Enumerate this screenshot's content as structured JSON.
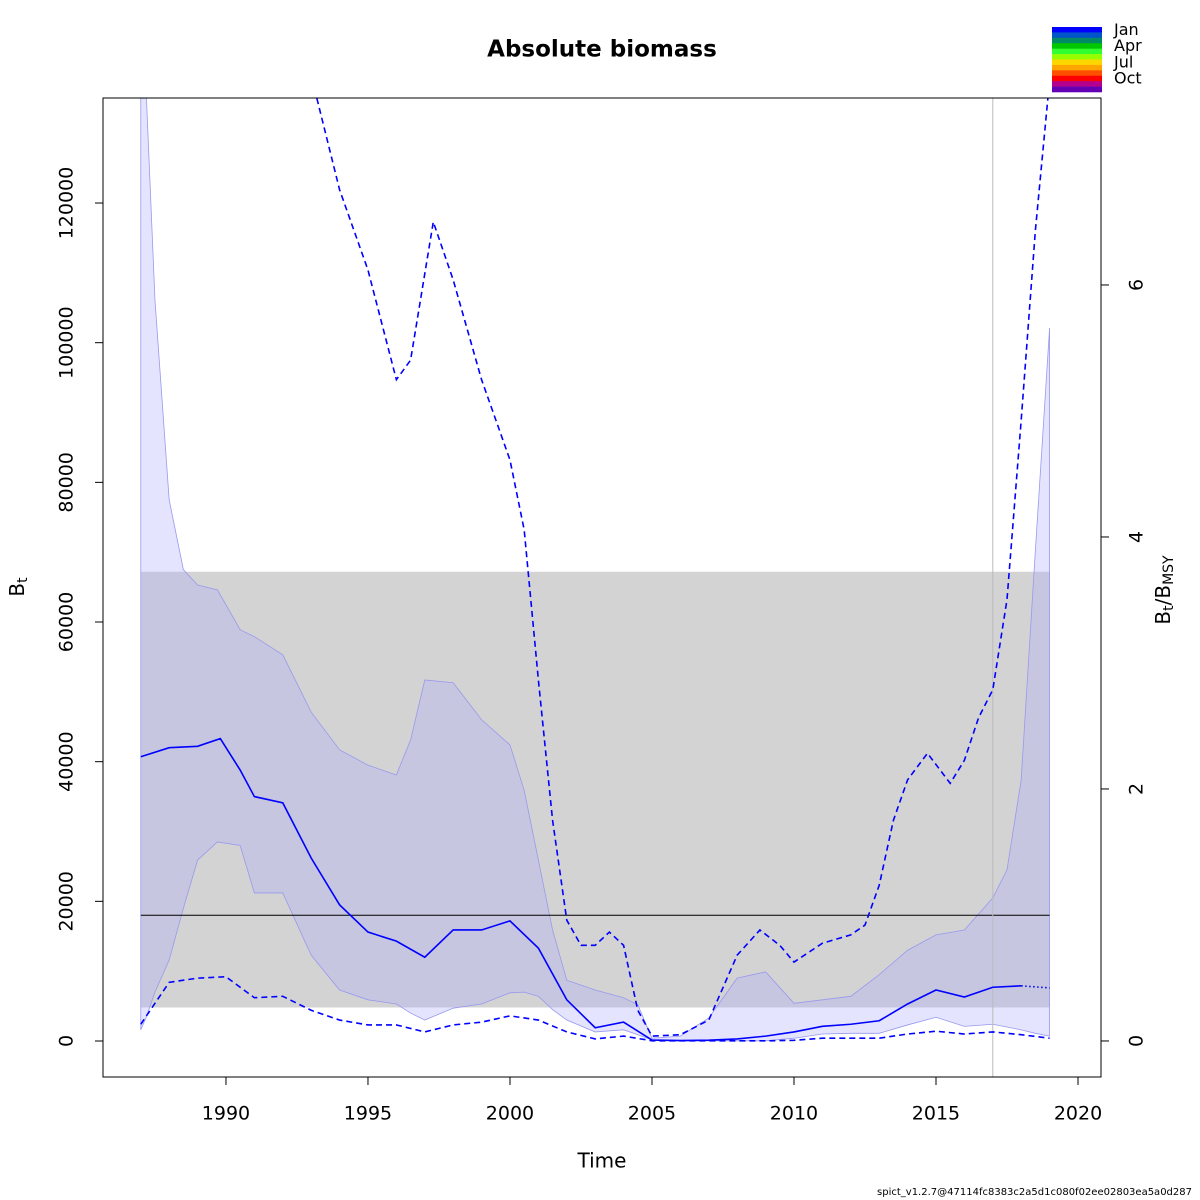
{
  "chart_data": {
    "type": "line",
    "title": "Absolute biomass",
    "xlabel": "Time",
    "ylabel": {
      "main": "B",
      "sub": "t"
    },
    "y2label": {
      "main": "B",
      "sub": "t",
      "main2": "/B",
      "sub2": "MSY"
    },
    "footer": "spict_v1.2.7@47114fc8383c2a5d1c080f02ee02803ea5a0d287",
    "xlim": [
      1985.67,
      2020.81
    ],
    "xticks": [
      1990,
      1995,
      2000,
      2005,
      2010,
      2015,
      2020
    ],
    "ylim": [
      -5155,
      135040
    ],
    "yticks": [
      0,
      20000,
      40000,
      60000,
      80000,
      100000,
      120000
    ],
    "y2lim": [
      -0.286,
      7.484
    ],
    "y2ticks": [
      0,
      2,
      4,
      6
    ],
    "colorbar": {
      "colors": [
        "#0000ff",
        "#0055c8",
        "#008a64",
        "#00c800",
        "#32ff32",
        "#96ff00",
        "#ffd700",
        "#ffa500",
        "#ff5000",
        "#ff0000",
        "#b4008c",
        "#6400b4"
      ],
      "labels": [
        {
          "index": 0,
          "label": "Jan"
        },
        {
          "index": 3,
          "label": "Apr"
        },
        {
          "index": 6,
          "label": "Jul"
        },
        {
          "index": 9,
          "label": "Oct"
        }
      ]
    },
    "msy_band": {
      "x": [
        1987,
        2019
      ],
      "lower": 4800,
      "upper": 67200,
      "color": "#d3d3d3"
    },
    "msy_line": {
      "x": [
        1987,
        2019
      ],
      "value": 18000,
      "color": "#000000"
    },
    "vline": {
      "value": 2017,
      "color": "#bbbbbb"
    },
    "bands": [
      {
        "color": "rgba(170,170,255,0.32)",
        "edge": "#9999ee",
        "x": [
          1987,
          1987.2,
          1987.5,
          1988,
          1988.5,
          1989,
          1989.7,
          1990.5,
          1991,
          1992,
          1993,
          1994,
          1995,
          1996,
          1996.5,
          1997,
          1998,
          1999,
          2000,
          2000.5,
          2001,
          2001.5,
          2002,
          2003,
          2004,
          2004.5,
          2005,
          2006,
          2007,
          2008,
          2009,
          2010,
          2011,
          2012,
          2013,
          2014,
          2015,
          2016,
          2017,
          2017.5,
          2018,
          2018.5,
          2019
        ],
        "upper": [
          135000,
          135000,
          106100,
          77500,
          67500,
          65300,
          64600,
          58900,
          57900,
          55300,
          47100,
          41700,
          39500,
          38100,
          43100,
          51700,
          51300,
          46000,
          42400,
          35900,
          25900,
          15900,
          8700,
          7300,
          6200,
          5200,
          400,
          700,
          3300,
          9000,
          9900,
          5400,
          5900,
          6400,
          9500,
          13000,
          15200,
          15900,
          20500,
          24500,
          37400,
          70300,
          102100
        ],
        "lower": [
          1600,
          3500,
          7000,
          11600,
          19000,
          25900,
          28500,
          28000,
          21200,
          21200,
          12300,
          7300,
          5900,
          5300,
          4000,
          3000,
          4700,
          5300,
          6900,
          7000,
          6400,
          4500,
          3000,
          1300,
          1600,
          900,
          140,
          30,
          30,
          30,
          30,
          400,
          1000,
          1100,
          1100,
          2300,
          3400,
          2100,
          2400,
          2000,
          1600,
          1100,
          700
        ]
      }
    ],
    "series": [
      {
        "color": "#0000ff",
        "dash": "solid",
        "x": [
          1987,
          1988,
          1989,
          1989.8,
          1990.5,
          1991,
          1992,
          1993,
          1994,
          1995,
          1996,
          1997,
          1998,
          1999,
          2000,
          2001,
          2002,
          2003,
          2004,
          2005,
          2006,
          2007,
          2008,
          2009,
          2010,
          2011,
          2012,
          2013,
          2014,
          2015,
          2016,
          2017,
          2018
        ],
        "values": [
          40700,
          42000,
          42200,
          43300,
          38800,
          35000,
          34100,
          26200,
          19500,
          15600,
          14300,
          12000,
          15900,
          15900,
          17200,
          13300,
          5900,
          1900,
          2700,
          140,
          60,
          120,
          300,
          700,
          1300,
          2100,
          2400,
          2900,
          5300,
          7300,
          6300,
          7700,
          7900
        ]
      },
      {
        "color": "#0000ff",
        "dash": "dotted",
        "x": [
          2018,
          2019
        ],
        "values": [
          7900,
          7600
        ]
      },
      {
        "color": "#0000ff",
        "dash": "dashed",
        "x": [
          1987,
          1988,
          1989,
          1990,
          1991,
          1992,
          1993,
          1994,
          1995,
          1996,
          1997,
          1998,
          1999,
          2000,
          2001,
          2002,
          2003,
          2004,
          2005,
          2006,
          2007,
          2008,
          2009,
          2010,
          2011,
          2012,
          2013,
          2014,
          2015,
          2016,
          2017,
          2018,
          2019
        ],
        "values": [
          2400,
          8400,
          9000,
          9200,
          6200,
          6400,
          4400,
          3000,
          2300,
          2300,
          1300,
          2300,
          2700,
          3600,
          3000,
          1300,
          300,
          700,
          30,
          20,
          20,
          20,
          20,
          100,
          400,
          400,
          400,
          1000,
          1400,
          1000,
          1300,
          900,
          400
        ]
      },
      {
        "color": "#0000ff",
        "dash": "dashed",
        "x": [
          1993.2,
          1994,
          1995,
          1996,
          1996.5,
          1997.3,
          1998,
          1999,
          2000,
          2000.5,
          2001,
          2001.5,
          2002,
          2002.5,
          2003,
          2003.5,
          2004,
          2004.5,
          2005,
          2006,
          2007,
          2008,
          2008.8,
          2009.5,
          2010,
          2011,
          2012,
          2012.5,
          2013,
          2013.5,
          2014,
          2014.7,
          2015.5,
          2016,
          2016.5,
          2017,
          2017.5,
          2018,
          2018.5,
          2019
        ],
        "values": [
          135000,
          121900,
          110400,
          94700,
          97500,
          117300,
          109000,
          94700,
          83200,
          73200,
          51700,
          31600,
          17300,
          13700,
          13700,
          15600,
          13700,
          4400,
          700,
          900,
          3000,
          12300,
          15900,
          13700,
          11300,
          14000,
          15200,
          16600,
          22300,
          31600,
          37400,
          41200,
          36900,
          40200,
          46300,
          50300,
          63200,
          88900,
          116100,
          137600
        ]
      }
    ]
  }
}
